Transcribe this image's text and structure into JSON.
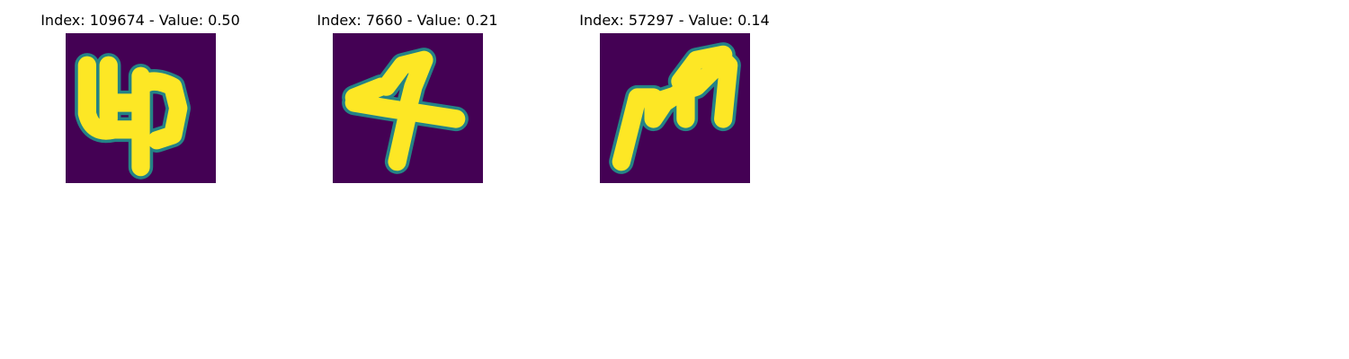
{
  "colors": {
    "background": "#440154",
    "foreground": "#fde725",
    "edge": "#21918c"
  },
  "panels": [
    {
      "title": "Index: 109674 - Value: 0.50"
    },
    {
      "title": "Index: 7660 - Value: 0.21"
    },
    {
      "title": "Index: 57297 - Value: 0.14"
    }
  ]
}
